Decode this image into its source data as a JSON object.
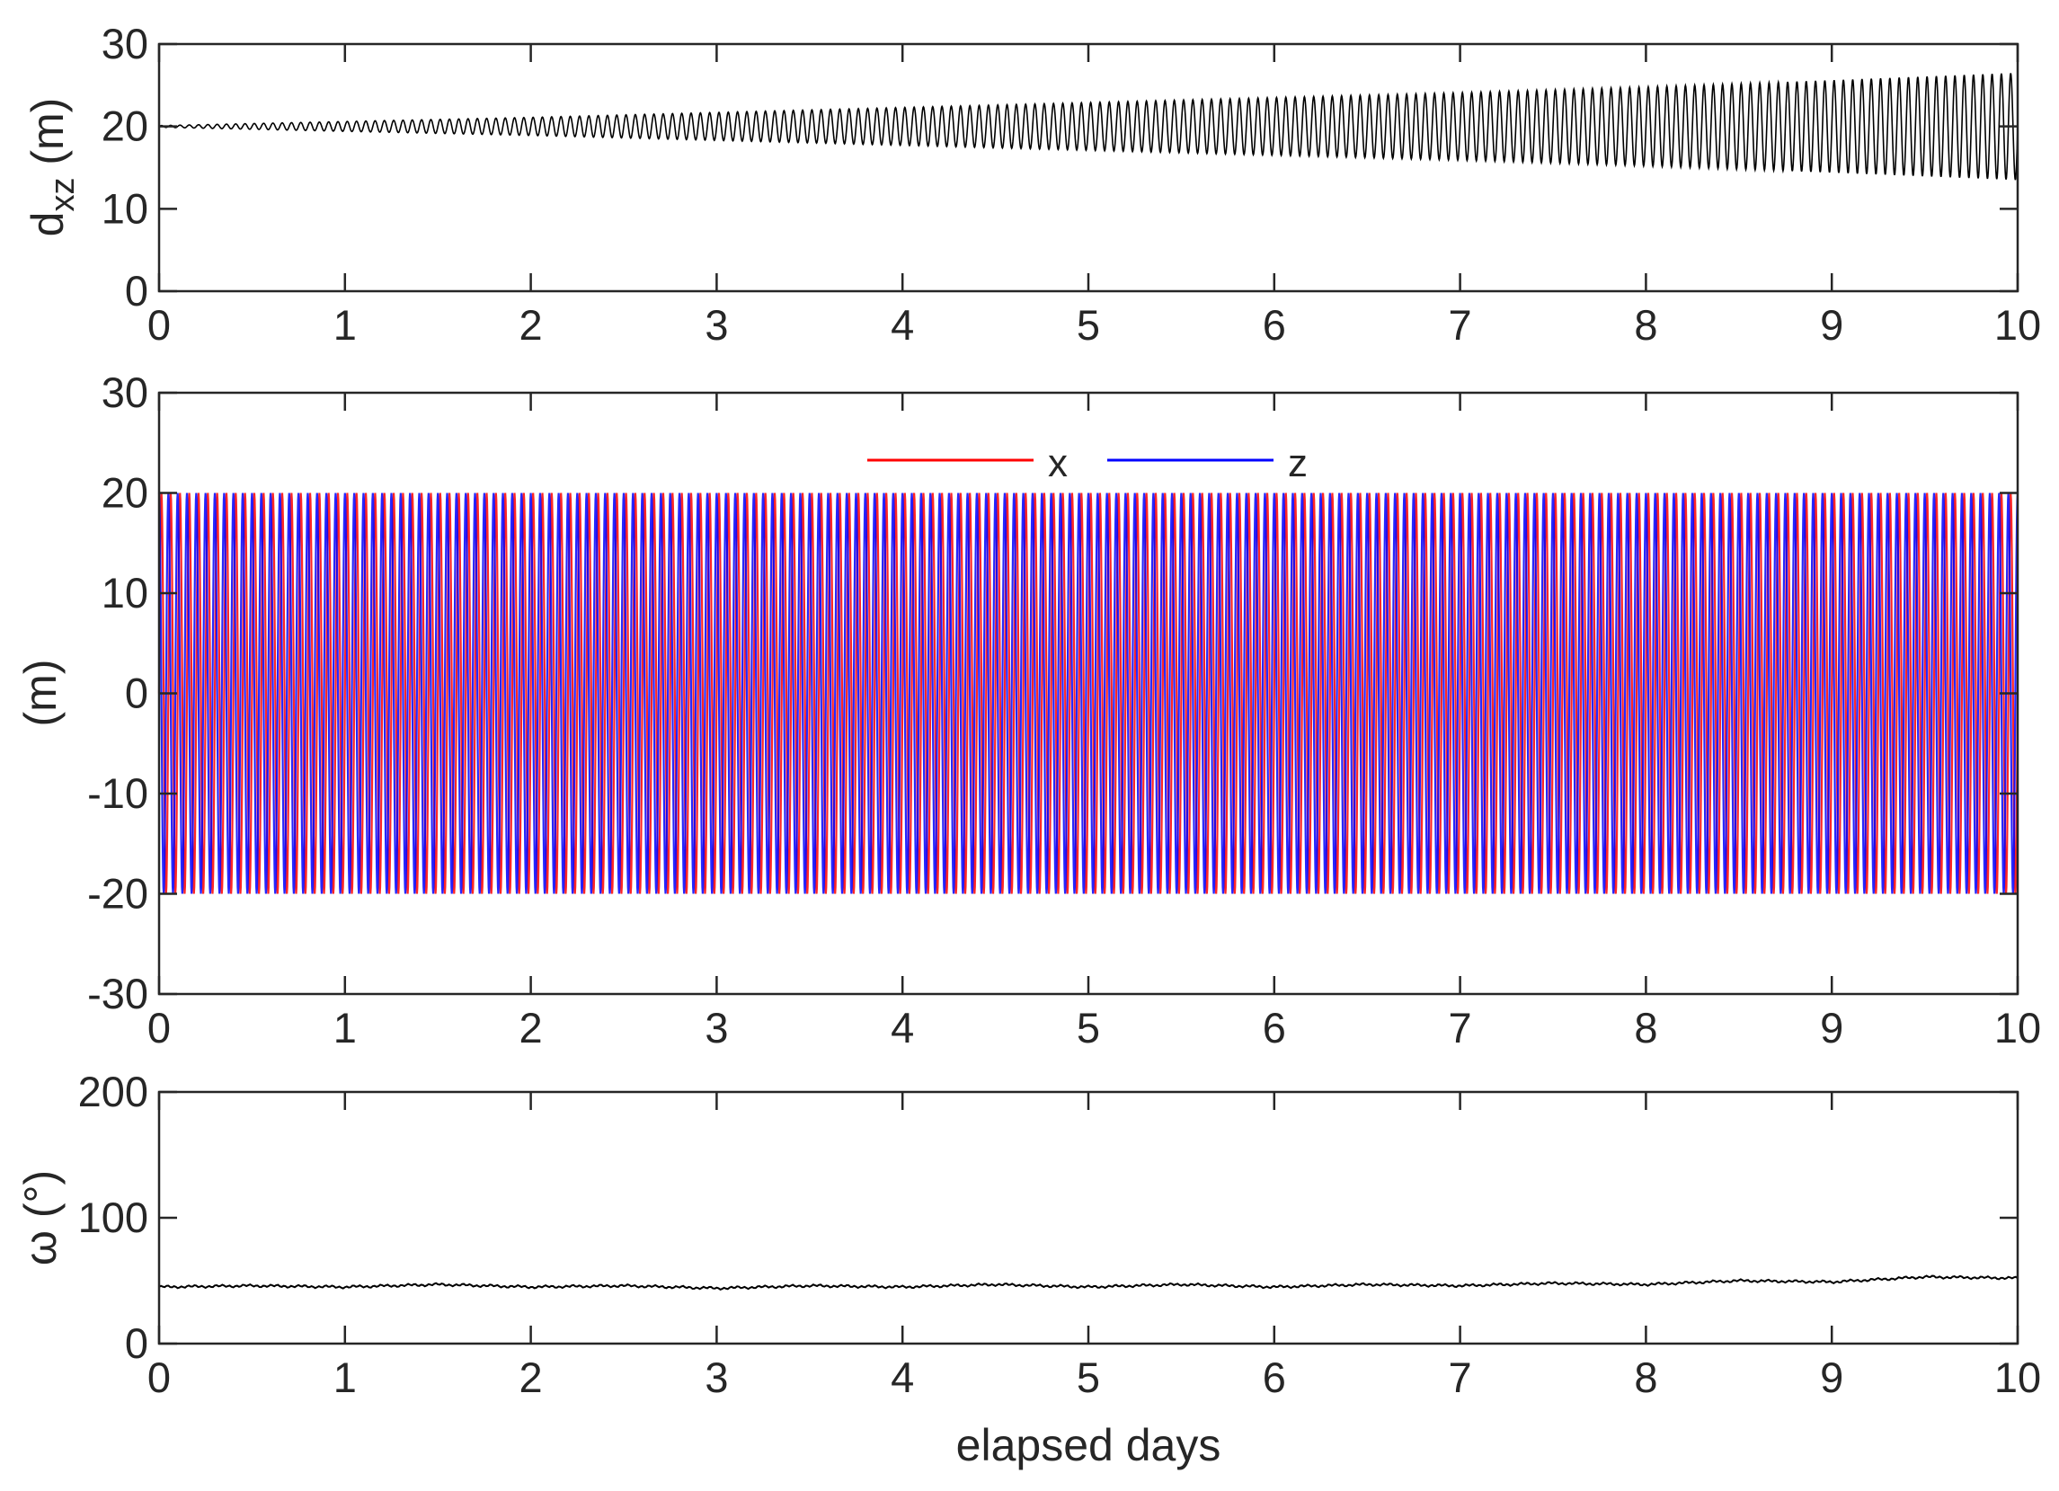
{
  "chart_data": [
    {
      "type": "line",
      "ylabel_main": "d",
      "ylabel_sub": "xz",
      "ylabel_unit": " (m)",
      "xlabel": "",
      "xlim": [
        0,
        10
      ],
      "ylim": [
        0,
        30
      ],
      "xticks": [
        "0",
        "1",
        "2",
        "3",
        "4",
        "5",
        "6",
        "7",
        "8",
        "9",
        "10"
      ],
      "yticks": [
        "0",
        "10",
        "20",
        "30"
      ],
      "grid": false,
      "series": [
        {
          "color": "#000000",
          "mean": 20,
          "amplitude_envelope": {
            "x": [
              0,
              1,
              2,
              3,
              4,
              5,
              6,
              7,
              8,
              9,
              10
            ],
            "values": [
              0.1,
              0.6,
              1.1,
              1.7,
              2.3,
              2.9,
              3.5,
              4.1,
              4.8,
              5.6,
              6.5
            ]
          },
          "cycles_per_day": 20
        }
      ]
    },
    {
      "type": "line",
      "ylabel": "(m)",
      "xlabel": "",
      "xlim": [
        0,
        10
      ],
      "ylim": [
        -30,
        30
      ],
      "xticks": [
        "0",
        "1",
        "2",
        "3",
        "4",
        "5",
        "6",
        "7",
        "8",
        "9",
        "10"
      ],
      "yticks": [
        "-30",
        "-20",
        "-10",
        "0",
        "10",
        "20",
        "30"
      ],
      "grid": false,
      "legend_placement": "top-center",
      "series": [
        {
          "name": "x",
          "color": "#ff0000",
          "amplitude": 20,
          "cycles_per_day": 20,
          "phase_deg": 0
        },
        {
          "name": "z",
          "color": "#0000ff",
          "amplitude": 20,
          "cycles_per_day": 20,
          "phase_deg": 90
        }
      ]
    },
    {
      "type": "line",
      "ylabel": "ω (°)",
      "xlabel": "elapsed days",
      "xlim": [
        0,
        10
      ],
      "ylim": [
        0,
        200
      ],
      "xticks": [
        "0",
        "1",
        "2",
        "3",
        "4",
        "5",
        "6",
        "7",
        "8",
        "9",
        "10"
      ],
      "yticks": [
        "0",
        "100",
        "200"
      ],
      "grid": false,
      "series": [
        {
          "color": "#000000",
          "x": [
            0,
            0.5,
            1,
            1.5,
            2,
            2.5,
            3,
            3.5,
            4,
            4.5,
            5,
            5.5,
            6,
            6.5,
            7,
            7.5,
            8,
            8.5,
            9,
            9.5,
            10
          ],
          "values": [
            45,
            46,
            45,
            47,
            45,
            46,
            44,
            46,
            45,
            47,
            45,
            47,
            45,
            47,
            46,
            48,
            47,
            50,
            49,
            53,
            52
          ]
        }
      ]
    }
  ]
}
